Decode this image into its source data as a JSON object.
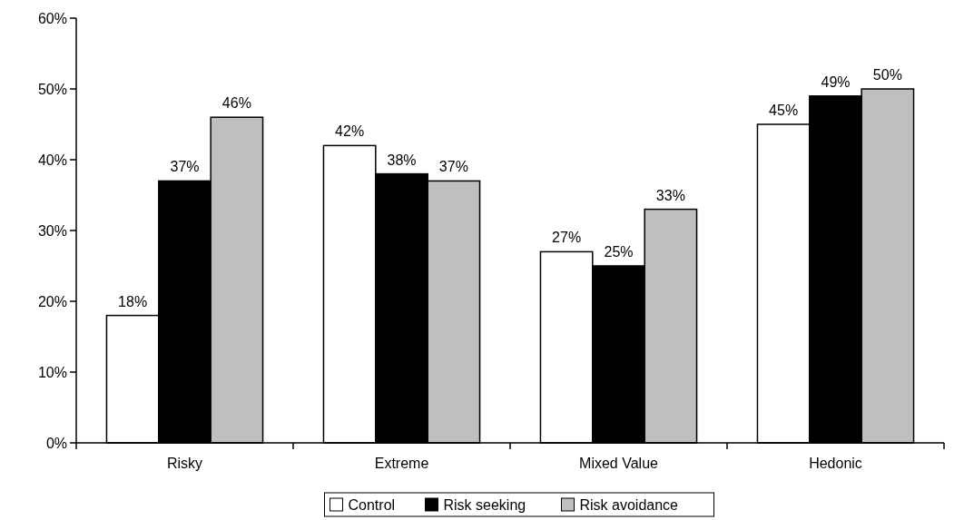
{
  "chart_data": {
    "type": "bar",
    "categories": [
      "Risky",
      "Extreme",
      "Mixed Value",
      "Hedonic"
    ],
    "series": [
      {
        "name": "Control",
        "color": "#ffffff",
        "values": [
          18,
          42,
          27,
          45
        ],
        "value_labels": [
          "18%",
          "42%",
          "27%",
          "45%"
        ]
      },
      {
        "name": "Risk seeking",
        "color": "#000000",
        "values": [
          37,
          38,
          25,
          49
        ],
        "value_labels": [
          "37%",
          "38%",
          "25%",
          "49%"
        ]
      },
      {
        "name": "Risk avoidance",
        "color": "#bfbfbf",
        "values": [
          46,
          37,
          33,
          50
        ],
        "value_labels": [
          "46%",
          "37%",
          "33%",
          "50%"
        ]
      }
    ],
    "ylim": [
      0,
      60
    ],
    "yticks": [
      {
        "value": 0,
        "label": "0%"
      },
      {
        "value": 10,
        "label": "10%"
      },
      {
        "value": 20,
        "label": "20%"
      },
      {
        "value": 30,
        "label": "30%"
      },
      {
        "value": 40,
        "label": "40%"
      },
      {
        "value": 50,
        "label": "50%"
      },
      {
        "value": 60,
        "label": "60%"
      }
    ],
    "grid": false,
    "legend": "bottom"
  }
}
